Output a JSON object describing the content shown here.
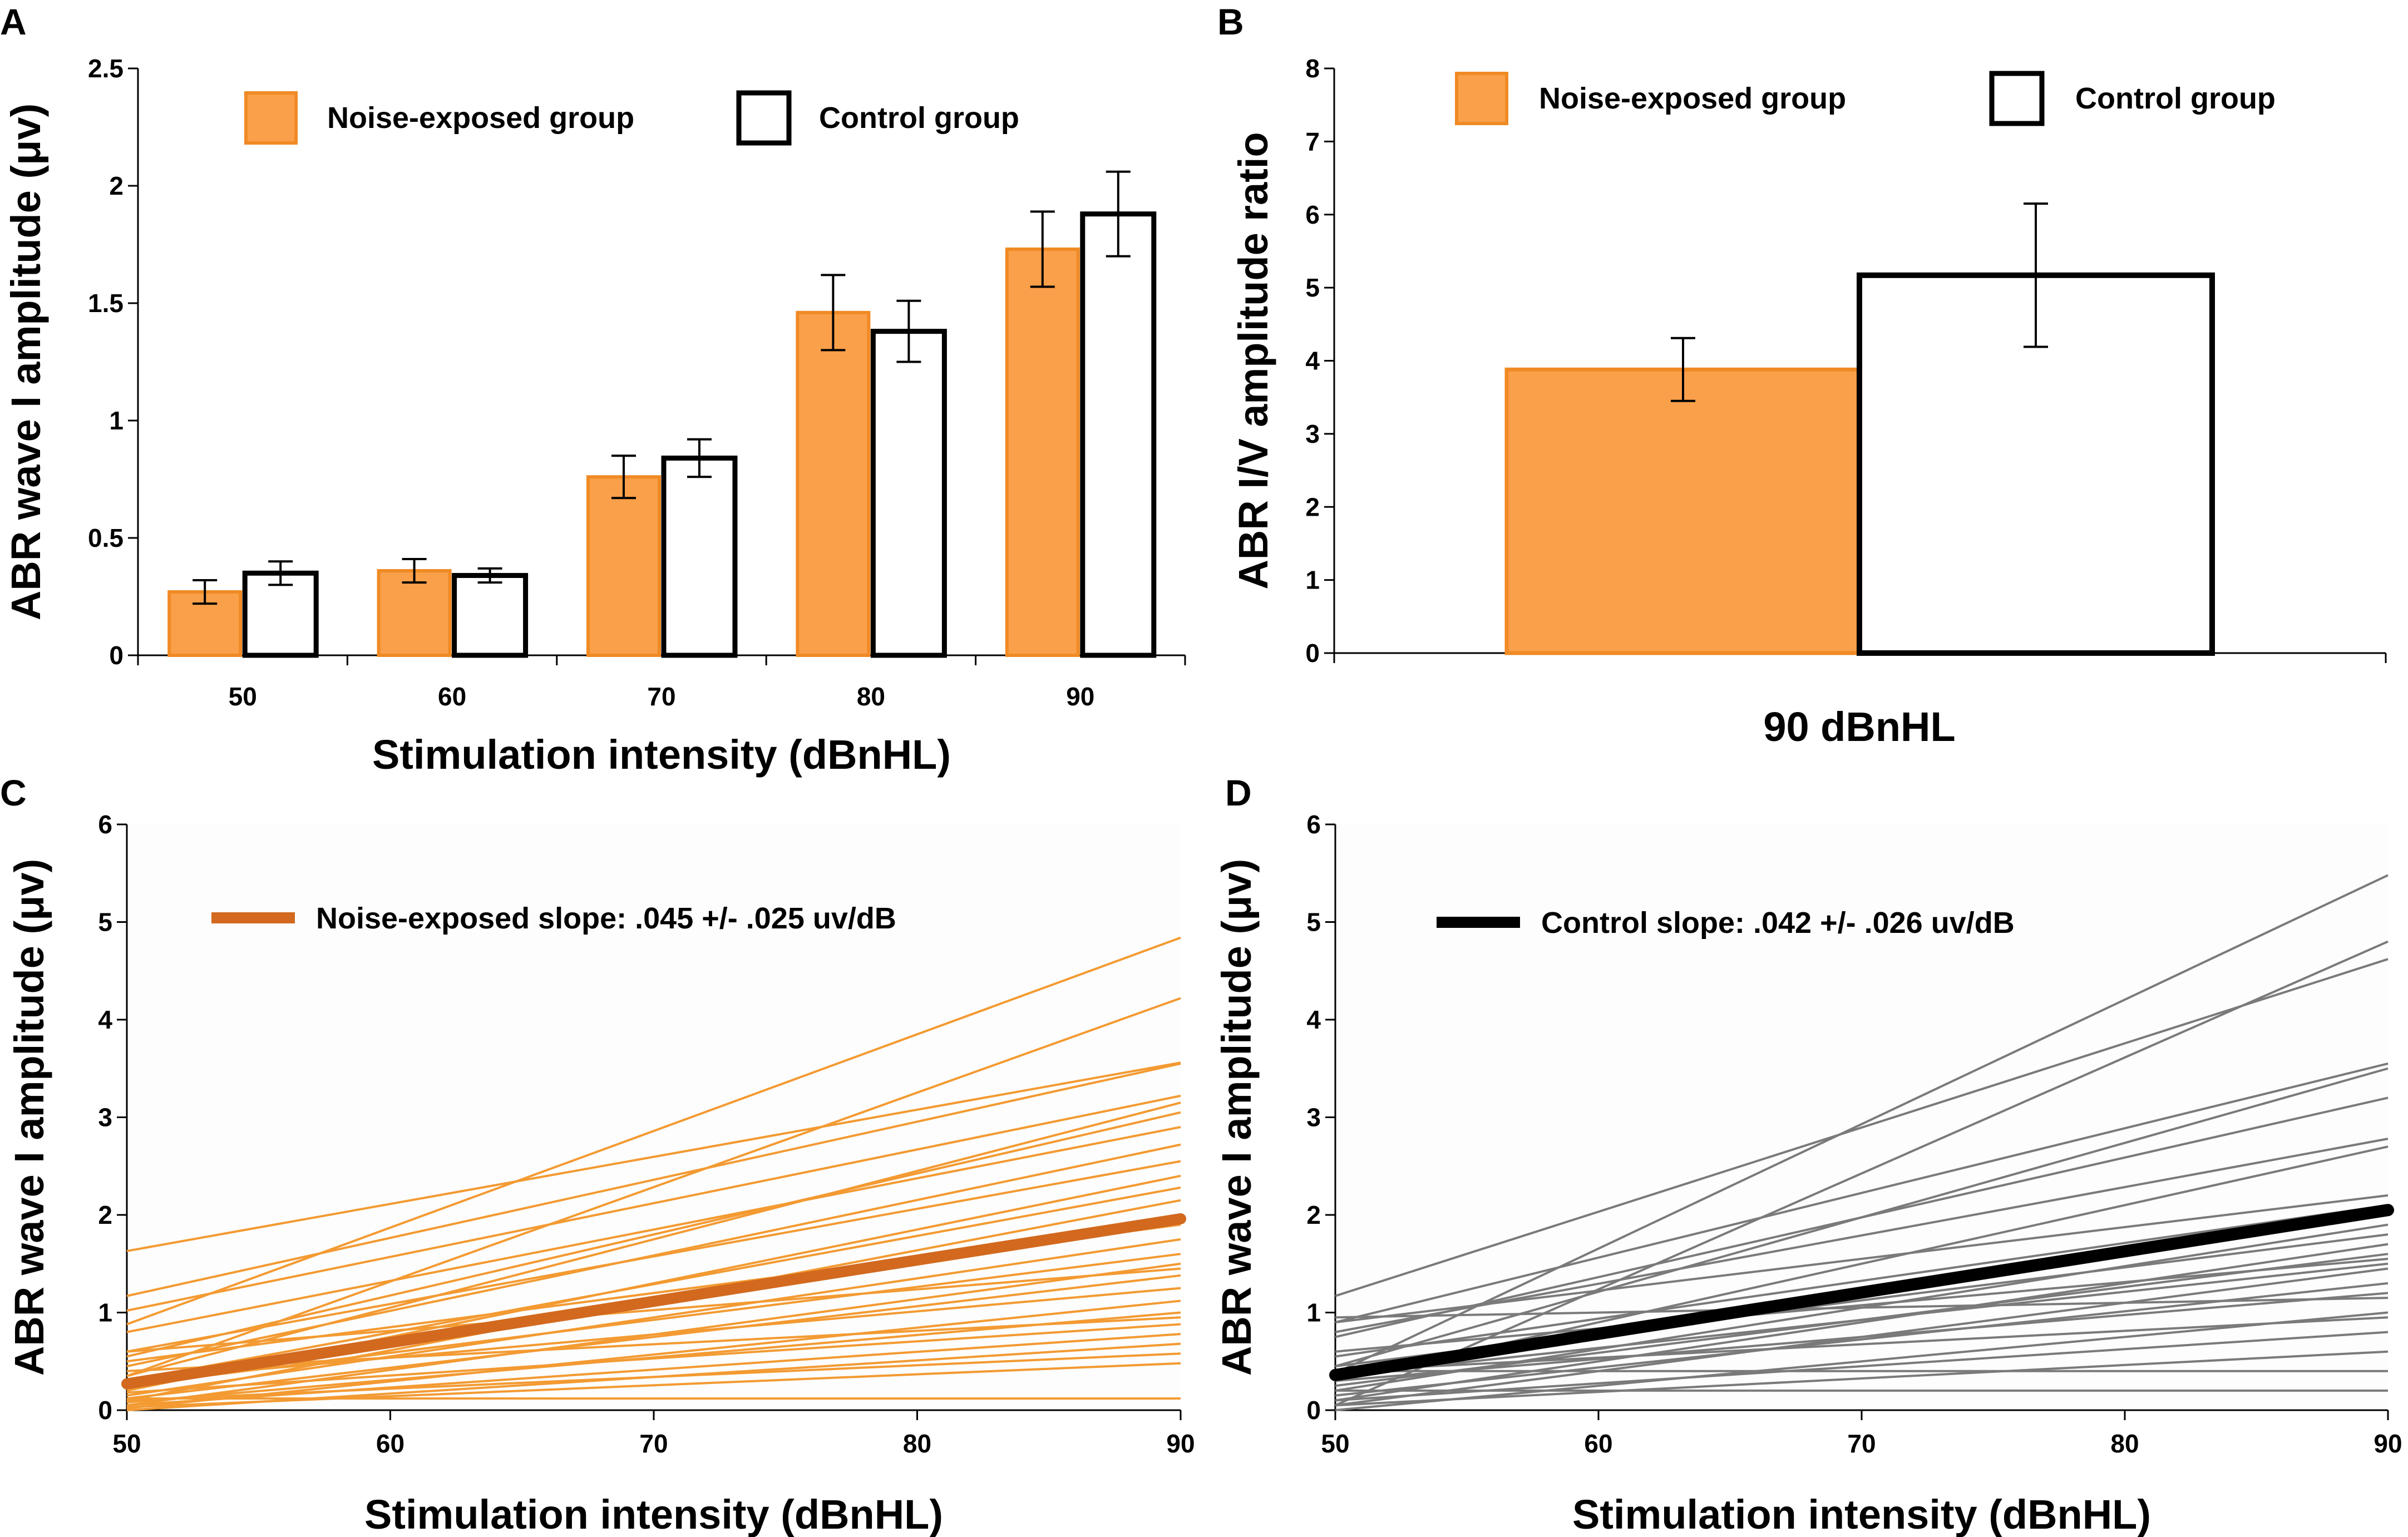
{
  "colors": {
    "noise_fill": "#FAA04A",
    "noise_edge": "#F08A24",
    "noise_thin": "#F39A32",
    "noise_mean": "#D2691E",
    "control_edge": "#000000",
    "control_thin": "#7A7A7A",
    "control_mean": "#000000"
  },
  "chart_data": [
    {
      "panel": "A",
      "type": "bar",
      "categories": [
        "50",
        "60",
        "70",
        "80",
        "90"
      ],
      "series": [
        {
          "name": "Noise-exposed group",
          "values": [
            0.27,
            0.36,
            0.76,
            1.46,
            1.73
          ],
          "err": [
            0.05,
            0.05,
            0.09,
            0.16,
            0.16
          ]
        },
        {
          "name": "Control group",
          "values": [
            0.35,
            0.34,
            0.84,
            1.38,
            1.88
          ],
          "err": [
            0.05,
            0.03,
            0.08,
            0.13,
            0.18
          ]
        }
      ],
      "xlabel": "Stimulation intensity (dBnHL)",
      "ylabel": "ABR wave I amplitude (μv)",
      "ylim": [
        0,
        2.5
      ],
      "yticks": [
        "0",
        "0.5",
        "1",
        "1.5",
        "2",
        "2.5"
      ]
    },
    {
      "panel": "B",
      "type": "bar",
      "categories": [
        "90 dBnHL"
      ],
      "series": [
        {
          "name": "Noise-exposed group",
          "values": [
            3.88
          ],
          "err": [
            0.43
          ]
        },
        {
          "name": "Control group",
          "values": [
            5.17
          ],
          "err": [
            0.98
          ]
        }
      ],
      "xlabel": "90 dBnHL",
      "ylabel": "ABR I/V amplitude ratio",
      "ylim": [
        0,
        8
      ],
      "yticks": [
        "0",
        "1",
        "2",
        "3",
        "4",
        "5",
        "6",
        "7",
        "8"
      ]
    },
    {
      "panel": "C",
      "type": "line",
      "xlabel": "Stimulation intensity (dBnHL)",
      "ylabel": "ABR wave I amplitude (μv)",
      "xlim": [
        50,
        90
      ],
      "ylim": [
        0,
        6
      ],
      "xticks": [
        "50",
        "60",
        "70",
        "80",
        "90"
      ],
      "yticks": [
        "0",
        "1",
        "2",
        "3",
        "4",
        "5",
        "6"
      ],
      "legend": "Noise-exposed slope: .045 +/- .025 uv/dB",
      "mean_line": [
        [
          50,
          0.27
        ],
        [
          90,
          1.96
        ]
      ],
      "individual_lines": [
        [
          [
            50,
            1.63
          ],
          [
            90,
            3.56
          ]
        ],
        [
          [
            50,
            0.88
          ],
          [
            90,
            4.84
          ]
        ],
        [
          [
            50,
            0.35
          ],
          [
            90,
            4.22
          ]
        ],
        [
          [
            50,
            1.17
          ],
          [
            90,
            3.55
          ]
        ],
        [
          [
            50,
            1.02
          ],
          [
            90,
            3.22
          ]
        ],
        [
          [
            50,
            0.55
          ],
          [
            90,
            3.05
          ]
        ],
        [
          [
            50,
            0.8
          ],
          [
            90,
            2.9
          ]
        ],
        [
          [
            50,
            0.45
          ],
          [
            90,
            2.72
          ]
        ],
        [
          [
            50,
            0.6
          ],
          [
            90,
            2.55
          ]
        ],
        [
          [
            50,
            0.2
          ],
          [
            90,
            2.4
          ]
        ],
        [
          [
            50,
            0.3
          ],
          [
            90,
            2.28
          ]
        ],
        [
          [
            50,
            0.1
          ],
          [
            90,
            2.15
          ]
        ],
        [
          [
            50,
            0.5
          ],
          [
            90,
            1.9
          ]
        ],
        [
          [
            50,
            0.15
          ],
          [
            90,
            1.75
          ]
        ],
        [
          [
            50,
            0.25
          ],
          [
            90,
            1.6
          ]
        ],
        [
          [
            50,
            0.05
          ],
          [
            90,
            1.5
          ]
        ],
        [
          [
            50,
            0.12
          ],
          [
            90,
            1.38
          ]
        ],
        [
          [
            50,
            0.3
          ],
          [
            90,
            1.25
          ]
        ],
        [
          [
            50,
            0.02
          ],
          [
            90,
            1.12
          ]
        ],
        [
          [
            50,
            0.08
          ],
          [
            90,
            1.0
          ]
        ],
        [
          [
            50,
            0.18
          ],
          [
            90,
            0.88
          ]
        ],
        [
          [
            50,
            0.05
          ],
          [
            90,
            0.78
          ]
        ],
        [
          [
            50,
            0.0
          ],
          [
            90,
            0.68
          ]
        ],
        [
          [
            50,
            0.1
          ],
          [
            90,
            0.58
          ]
        ],
        [
          [
            50,
            0.03
          ],
          [
            90,
            0.48
          ]
        ],
        [
          [
            50,
            0.12
          ],
          [
            90,
            0.12
          ]
        ],
        [
          [
            50,
            0.35
          ],
          [
            90,
            3.15
          ]
        ],
        [
          [
            50,
            0.6
          ],
          [
            90,
            1.45
          ]
        ],
        [
          [
            50,
            0.22
          ],
          [
            90,
            2.0
          ]
        ],
        [
          [
            50,
            0.4
          ],
          [
            90,
            0.95
          ]
        ]
      ]
    },
    {
      "panel": "D",
      "type": "line",
      "xlabel": "Stimulation intensity (dBnHL)",
      "ylabel": "ABR wave I amplitude (μv)",
      "xlim": [
        50,
        90
      ],
      "ylim": [
        0,
        6
      ],
      "xticks": [
        "50",
        "60",
        "70",
        "80",
        "90"
      ],
      "yticks": [
        "0",
        "1",
        "2",
        "3",
        "4",
        "5",
        "6"
      ],
      "legend": "Control slope: .042 +/- .026 uv/dB",
      "mean_line": [
        [
          50,
          0.36
        ],
        [
          90,
          2.05
        ]
      ],
      "individual_lines": [
        [
          [
            50,
            0.38
          ],
          [
            90,
            5.48
          ]
        ],
        [
          [
            50,
            0.05
          ],
          [
            90,
            4.8
          ]
        ],
        [
          [
            50,
            1.17
          ],
          [
            90,
            4.62
          ]
        ],
        [
          [
            50,
            0.9
          ],
          [
            90,
            3.55
          ]
        ],
        [
          [
            50,
            0.45
          ],
          [
            90,
            3.5
          ]
        ],
        [
          [
            50,
            0.75
          ],
          [
            90,
            3.2
          ]
        ],
        [
          [
            50,
            0.8
          ],
          [
            90,
            2.78
          ]
        ],
        [
          [
            50,
            0.3
          ],
          [
            90,
            2.7
          ]
        ],
        [
          [
            50,
            0.9
          ],
          [
            90,
            2.2
          ]
        ],
        [
          [
            50,
            0.55
          ],
          [
            90,
            2.1
          ]
        ],
        [
          [
            50,
            0.2
          ],
          [
            90,
            1.9
          ]
        ],
        [
          [
            50,
            0.45
          ],
          [
            90,
            1.8
          ]
        ],
        [
          [
            50,
            0.1
          ],
          [
            90,
            1.7
          ]
        ],
        [
          [
            50,
            0.25
          ],
          [
            90,
            1.6
          ]
        ],
        [
          [
            50,
            0.35
          ],
          [
            90,
            1.5
          ]
        ],
        [
          [
            50,
            0.05
          ],
          [
            90,
            1.45
          ]
        ],
        [
          [
            50,
            0.15
          ],
          [
            90,
            1.3
          ]
        ],
        [
          [
            50,
            0.3
          ],
          [
            90,
            1.2
          ]
        ],
        [
          [
            50,
            0.0
          ],
          [
            90,
            1.0
          ]
        ],
        [
          [
            50,
            0.4
          ],
          [
            90,
            0.95
          ]
        ],
        [
          [
            50,
            0.1
          ],
          [
            90,
            0.8
          ]
        ],
        [
          [
            50,
            0.4
          ],
          [
            90,
            0.4
          ]
        ],
        [
          [
            50,
            0.2
          ],
          [
            90,
            0.2
          ]
        ],
        [
          [
            50,
            0.6
          ],
          [
            90,
            1.55
          ]
        ],
        [
          [
            50,
            0.95
          ],
          [
            90,
            1.15
          ]
        ],
        [
          [
            50,
            0.05
          ],
          [
            90,
            0.6
          ]
        ]
      ]
    }
  ]
}
